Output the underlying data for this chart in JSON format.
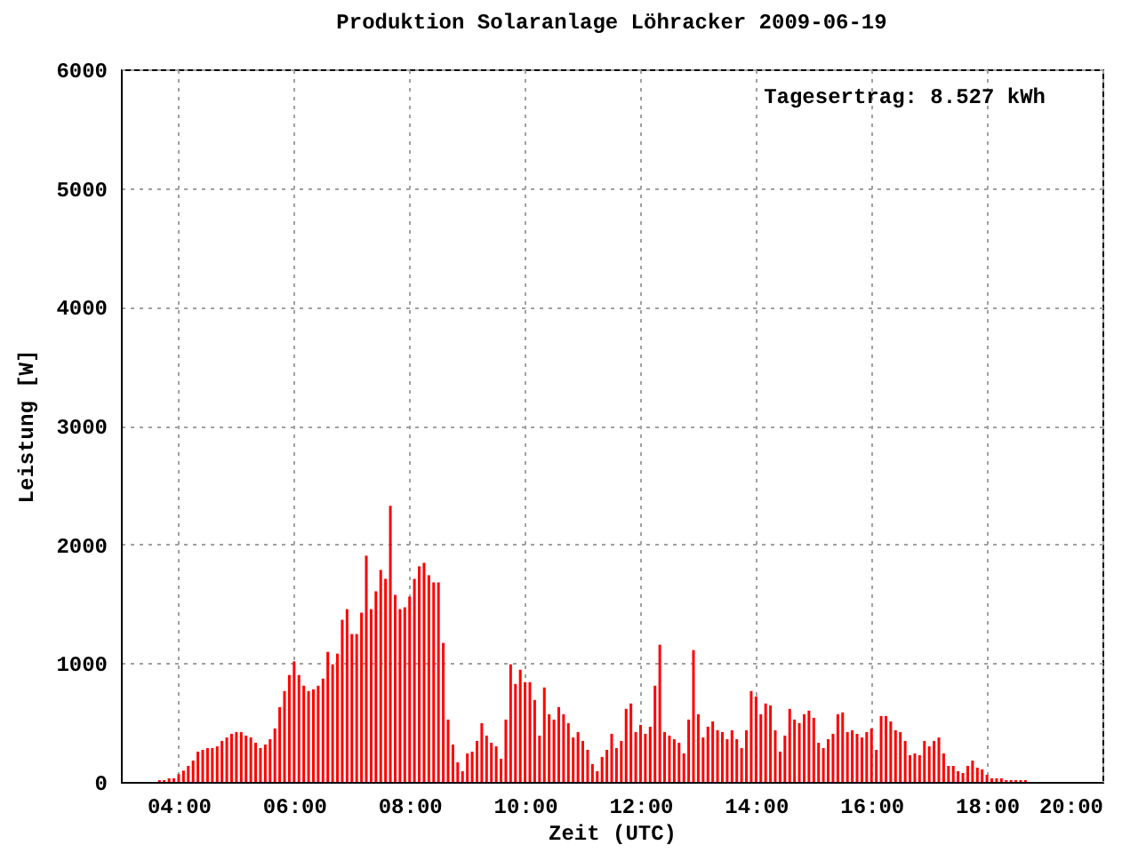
{
  "chart_data": {
    "type": "bar",
    "title": "Produktion Solaranlage Löhracker 2009-06-19",
    "xlabel": "Zeit (UTC)",
    "ylabel": "Leistung [W]",
    "annotations": [
      "Tagesertrag: 8.527 kWh"
    ],
    "x": [
      "2009-06-19T03:40",
      "2009-06-19T03:45",
      "2009-06-19T03:50",
      "2009-06-19T03:55",
      "2009-06-19T04:00",
      "2009-06-19T04:05",
      "2009-06-19T04:10",
      "2009-06-19T04:15",
      "2009-06-19T04:20",
      "2009-06-19T04:25",
      "2009-06-19T04:30",
      "2009-06-19T04:35",
      "2009-06-19T04:40",
      "2009-06-19T04:45",
      "2009-06-19T04:50",
      "2009-06-19T04:55",
      "2009-06-19T05:00",
      "2009-06-19T05:05",
      "2009-06-19T05:10",
      "2009-06-19T05:15",
      "2009-06-19T05:20",
      "2009-06-19T05:25",
      "2009-06-19T05:30",
      "2009-06-19T05:35",
      "2009-06-19T05:40",
      "2009-06-19T05:45",
      "2009-06-19T05:50",
      "2009-06-19T05:55",
      "2009-06-19T06:00",
      "2009-06-19T06:05",
      "2009-06-19T06:10",
      "2009-06-19T06:15",
      "2009-06-19T06:20",
      "2009-06-19T06:25",
      "2009-06-19T06:30",
      "2009-06-19T06:35",
      "2009-06-19T06:40",
      "2009-06-19T06:45",
      "2009-06-19T06:50",
      "2009-06-19T06:55",
      "2009-06-19T07:00",
      "2009-06-19T07:05",
      "2009-06-19T07:10",
      "2009-06-19T07:15",
      "2009-06-19T07:20",
      "2009-06-19T07:25",
      "2009-06-19T07:30",
      "2009-06-19T07:35",
      "2009-06-19T07:40",
      "2009-06-19T07:45",
      "2009-06-19T07:50",
      "2009-06-19T07:55",
      "2009-06-19T08:00",
      "2009-06-19T08:05",
      "2009-06-19T08:10",
      "2009-06-19T08:15",
      "2009-06-19T08:20",
      "2009-06-19T08:25",
      "2009-06-19T08:30",
      "2009-06-19T08:35",
      "2009-06-19T08:40",
      "2009-06-19T08:45",
      "2009-06-19T08:50",
      "2009-06-19T08:55",
      "2009-06-19T09:00",
      "2009-06-19T09:05",
      "2009-06-19T09:10",
      "2009-06-19T09:15",
      "2009-06-19T09:20",
      "2009-06-19T09:25",
      "2009-06-19T09:30",
      "2009-06-19T09:35",
      "2009-06-19T09:40",
      "2009-06-19T09:45",
      "2009-06-19T09:50",
      "2009-06-19T09:55",
      "2009-06-19T10:00",
      "2009-06-19T10:05",
      "2009-06-19T10:10",
      "2009-06-19T10:15",
      "2009-06-19T10:20",
      "2009-06-19T10:25",
      "2009-06-19T10:30",
      "2009-06-19T10:35",
      "2009-06-19T10:40",
      "2009-06-19T10:45",
      "2009-06-19T10:50",
      "2009-06-19T10:55",
      "2009-06-19T11:00",
      "2009-06-19T11:05",
      "2009-06-19T11:10",
      "2009-06-19T11:15",
      "2009-06-19T11:20",
      "2009-06-19T11:25",
      "2009-06-19T11:30",
      "2009-06-19T11:35",
      "2009-06-19T11:40",
      "2009-06-19T11:45",
      "2009-06-19T11:50",
      "2009-06-19T11:55",
      "2009-06-19T12:00",
      "2009-06-19T12:05",
      "2009-06-19T12:10",
      "2009-06-19T12:15",
      "2009-06-19T12:20",
      "2009-06-19T12:25",
      "2009-06-19T12:30",
      "2009-06-19T12:35",
      "2009-06-19T12:40",
      "2009-06-19T12:45",
      "2009-06-19T12:50",
      "2009-06-19T12:55",
      "2009-06-19T13:00",
      "2009-06-19T13:05",
      "2009-06-19T13:10",
      "2009-06-19T13:15",
      "2009-06-19T13:20",
      "2009-06-19T13:25",
      "2009-06-19T13:30",
      "2009-06-19T13:35",
      "2009-06-19T13:40",
      "2009-06-19T13:45",
      "2009-06-19T13:50",
      "2009-06-19T13:55",
      "2009-06-19T14:00",
      "2009-06-19T14:05",
      "2009-06-19T14:10",
      "2009-06-19T14:15",
      "2009-06-19T14:20",
      "2009-06-19T14:25",
      "2009-06-19T14:30",
      "2009-06-19T14:35",
      "2009-06-19T14:40",
      "2009-06-19T14:45",
      "2009-06-19T14:50",
      "2009-06-19T14:55",
      "2009-06-19T15:00",
      "2009-06-19T15:05",
      "2009-06-19T15:10",
      "2009-06-19T15:15",
      "2009-06-19T15:20",
      "2009-06-19T15:25",
      "2009-06-19T15:30",
      "2009-06-19T15:35",
      "2009-06-19T15:40",
      "2009-06-19T15:45",
      "2009-06-19T15:50",
      "2009-06-19T15:55",
      "2009-06-19T16:00",
      "2009-06-19T16:05",
      "2009-06-19T16:10",
      "2009-06-19T16:15",
      "2009-06-19T16:20",
      "2009-06-19T16:25",
      "2009-06-19T16:30",
      "2009-06-19T16:35",
      "2009-06-19T16:40",
      "2009-06-19T16:45",
      "2009-06-19T16:50",
      "2009-06-19T16:55",
      "2009-06-19T17:00",
      "2009-06-19T17:05",
      "2009-06-19T17:10",
      "2009-06-19T17:15",
      "2009-06-19T17:20",
      "2009-06-19T17:25",
      "2009-06-19T17:30",
      "2009-06-19T17:35",
      "2009-06-19T17:40",
      "2009-06-19T17:45",
      "2009-06-19T17:50",
      "2009-06-19T17:55",
      "2009-06-19T18:00",
      "2009-06-19T18:05",
      "2009-06-19T18:10",
      "2009-06-19T18:15",
      "2009-06-19T18:20",
      "2009-06-19T18:25",
      "2009-06-19T18:30",
      "2009-06-19T18:35",
      "2009-06-19T18:40"
    ],
    "series": [
      {
        "color": "#ff0000",
        "values": [
          15,
          15,
          30,
          30,
          65,
          95,
          135,
          180,
          255,
          270,
          285,
          285,
          300,
          345,
          375,
          405,
          420,
          420,
          390,
          375,
          330,
          285,
          315,
          360,
          450,
          630,
          765,
          900,
          1015,
          900,
          810,
          765,
          780,
          810,
          870,
          1095,
          990,
          1080,
          1365,
          1455,
          1245,
          1245,
          1425,
          1905,
          1455,
          1605,
          1785,
          1710,
          2325,
          1575,
          1455,
          1470,
          1560,
          1710,
          1815,
          1845,
          1740,
          1680,
          1680,
          1170,
          525,
          315,
          165,
          90,
          240,
          255,
          345,
          495,
          390,
          330,
          300,
          195,
          525,
          990,
          825,
          945,
          840,
          840,
          690,
          390,
          795,
          570,
          525,
          630,
          570,
          495,
          375,
          420,
          345,
          270,
          150,
          90,
          210,
          270,
          405,
          285,
          345,
          615,
          660,
          420,
          480,
          405,
          465,
          810,
          1155,
          420,
          390,
          360,
          330,
          240,
          525,
          1110,
          570,
          375,
          465,
          510,
          435,
          420,
          360,
          435,
          360,
          285,
          435,
          765,
          720,
          570,
          660,
          645,
          435,
          255,
          390,
          615,
          525,
          495,
          570,
          600,
          540,
          330,
          285,
          360,
          405,
          570,
          585,
          420,
          435,
          405,
          375,
          420,
          450,
          270,
          555,
          555,
          510,
          435,
          420,
          345,
          225,
          240,
          225,
          345,
          300,
          345,
          375,
          240,
          135,
          135,
          90,
          75,
          135,
          180,
          120,
          105,
          60,
          30,
          30,
          30,
          15,
          15,
          15,
          15,
          15
        ]
      }
    ],
    "xlim": [
      "2009-06-19T03:00",
      "2009-06-19T20:00"
    ],
    "xticks": [
      {
        "value": "2009-06-19T04:00",
        "label": "04:00"
      },
      {
        "value": "2009-06-19T06:00",
        "label": "06:00"
      },
      {
        "value": "2009-06-19T08:00",
        "label": "08:00"
      },
      {
        "value": "2009-06-19T10:00",
        "label": "10:00"
      },
      {
        "value": "2009-06-19T12:00",
        "label": "12:00"
      },
      {
        "value": "2009-06-19T14:00",
        "label": "14:00"
      },
      {
        "value": "2009-06-19T16:00",
        "label": "16:00"
      },
      {
        "value": "2009-06-19T18:00",
        "label": "18:00"
      },
      {
        "value": "2009-06-19T20:00",
        "label": "20:00"
      }
    ],
    "ylim": [
      0,
      6000
    ],
    "yticks": [
      0,
      1000,
      2000,
      3000,
      4000,
      5000,
      6000
    ],
    "grid": true
  }
}
